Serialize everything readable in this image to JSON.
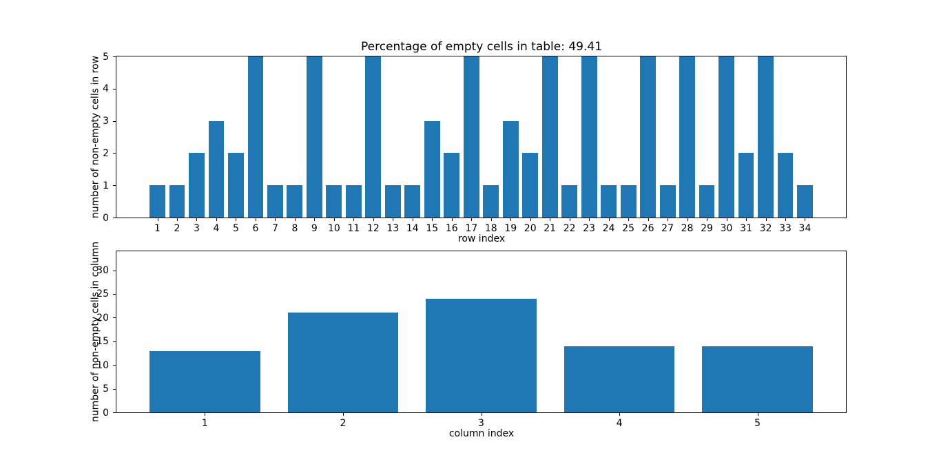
{
  "figure": {
    "background": "#ffffff",
    "bar_color": "#1f77b4",
    "text_color": "#000000"
  },
  "chart_data": [
    {
      "type": "bar",
      "title": "Percentage of empty cells in table: 49.41",
      "xlabel": "row index",
      "ylabel": "number of non-empty cells in row",
      "categories": [
        "1",
        "2",
        "3",
        "4",
        "5",
        "6",
        "7",
        "8",
        "9",
        "10",
        "11",
        "12",
        "13",
        "14",
        "15",
        "16",
        "17",
        "18",
        "19",
        "20",
        "21",
        "22",
        "23",
        "24",
        "25",
        "26",
        "27",
        "28",
        "29",
        "30",
        "31",
        "32",
        "33",
        "34"
      ],
      "values": [
        1,
        1,
        2,
        3,
        2,
        5,
        1,
        1,
        5,
        1,
        1,
        5,
        1,
        1,
        3,
        2,
        5,
        1,
        3,
        2,
        5,
        1,
        5,
        1,
        1,
        5,
        1,
        5,
        1,
        5,
        2,
        5,
        2,
        1
      ],
      "ylim": [
        0,
        5
      ],
      "yticks": [
        0,
        1,
        2,
        3,
        4,
        5
      ],
      "bar_width_fraction": 0.8,
      "grid": false,
      "legend": null
    },
    {
      "type": "bar",
      "title": "",
      "xlabel": "column index",
      "ylabel": "number of non-empty cells in column",
      "categories": [
        "1",
        "2",
        "3",
        "4",
        "5"
      ],
      "values": [
        13,
        21,
        24,
        14,
        14
      ],
      "ylim": [
        0,
        34
      ],
      "yticks": [
        0,
        5,
        10,
        15,
        20,
        25,
        30
      ],
      "bar_width_fraction": 0.8,
      "grid": false,
      "legend": null
    }
  ]
}
